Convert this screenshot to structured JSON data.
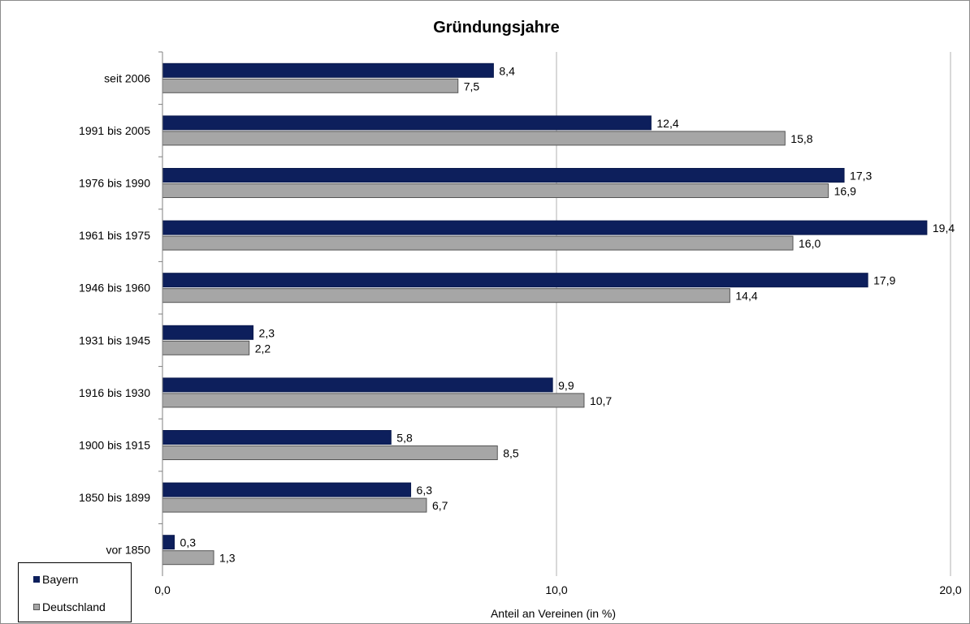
{
  "chart_data": {
    "type": "bar",
    "orientation": "horizontal",
    "title": "Gründungsjahre",
    "xlabel": "Anteil an Vereinen (in %)",
    "ylabel": "",
    "xlim": [
      0,
      20
    ],
    "x_ticks": [
      "0,0",
      "10,0",
      "20,0"
    ],
    "grid": "vertical major gridlines",
    "legend_position": "bottom-left",
    "categories": [
      "seit 2006",
      "1991 bis 2005",
      "1976 bis 1990",
      "1961 bis 1975",
      "1946 bis 1960",
      "1931 bis 1945",
      "1916 bis 1930",
      "1900 bis 1915",
      "1850 bis 1899",
      "vor 1850"
    ],
    "series": [
      {
        "name": "Bayern",
        "color": "#0d1f5c",
        "values": [
          8.4,
          12.4,
          17.3,
          19.4,
          17.9,
          2.3,
          9.9,
          5.8,
          6.3,
          0.3
        ],
        "labels": [
          "8,4",
          "12,4",
          "17,3",
          "19,4",
          "17,9",
          "2,3",
          "9,9",
          "5,8",
          "6,3",
          "0,3"
        ]
      },
      {
        "name": "Deutschland",
        "color": "#a6a6a6",
        "values": [
          7.5,
          15.8,
          16.9,
          16.0,
          14.4,
          2.2,
          10.7,
          8.5,
          6.7,
          1.3
        ],
        "labels": [
          "7,5",
          "15,8",
          "16,9",
          "16,0",
          "14,4",
          "2,2",
          "10,7",
          "8,5",
          "6,7",
          "1,3"
        ]
      }
    ]
  }
}
